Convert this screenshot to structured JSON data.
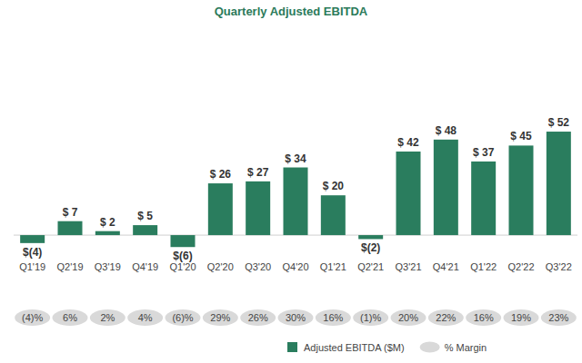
{
  "chart_data": {
    "type": "bar",
    "title": "Quarterly Adjusted EBITDA",
    "categories": [
      "Q1'19",
      "Q2'19",
      "Q3'19",
      "Q4'19",
      "Q1'20",
      "Q2'20",
      "Q3'20",
      "Q4'20",
      "Q1'21",
      "Q2'21",
      "Q3'21",
      "Q4'21",
      "Q1'22",
      "Q2'22",
      "Q3'22"
    ],
    "series": [
      {
        "name": "Adjusted EBITDA ($M)",
        "type": "bar",
        "color": "#2a7d5e",
        "values": [
          -4,
          7,
          2,
          5,
          -6,
          26,
          27,
          34,
          20,
          -2,
          42,
          48,
          37,
          45,
          52
        ],
        "value_labels": [
          "$(4)",
          "$ 7",
          "$ 2",
          "$ 5",
          "$(6)",
          "$ 26",
          "$ 27",
          "$ 34",
          "$ 20",
          "$(2)",
          "$ 42",
          "$ 48",
          "$ 37",
          "$ 45",
          "$ 52"
        ]
      },
      {
        "name": "% Margin",
        "type": "text",
        "marker": "ellipse",
        "color": "#d9d9d9",
        "values": [
          -4,
          6,
          2,
          4,
          -6,
          29,
          26,
          30,
          16,
          -1,
          20,
          22,
          16,
          19,
          23
        ],
        "value_labels": [
          "(4)%",
          "6%",
          "2%",
          "4%",
          "(6)%",
          "29%",
          "26%",
          "30%",
          "16%",
          "(1)%",
          "20%",
          "22%",
          "16%",
          "19%",
          "23%"
        ]
      }
    ],
    "ylim": [
      -10,
      60
    ],
    "data_labels": true,
    "tick_labels": "x",
    "legend": "bottom"
  }
}
